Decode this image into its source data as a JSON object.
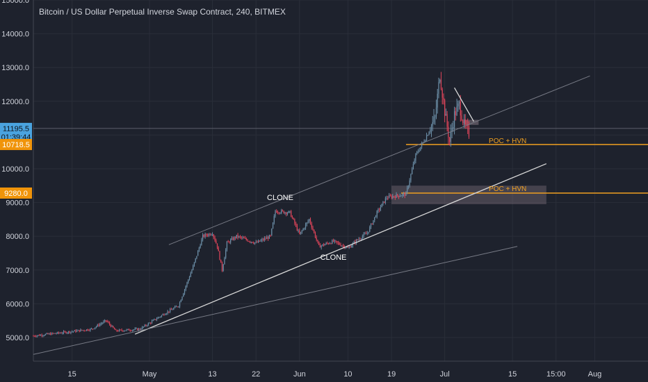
{
  "header": {
    "title": "Bitcoin / US Dollar Perpetual Inverse Swap Contract, 240, BITMEX"
  },
  "colors": {
    "background": "#1e222d",
    "grid": "#2a2e39",
    "axis_text": "#d1d4dc",
    "up_candle": "#6c8fa8",
    "down_candle": "#e0455a",
    "trendline_white": "#d9d9d9",
    "trendline_grey": "#787b86",
    "poc_line": "#f0a020",
    "zone_fill": "#8e7e8a",
    "price_badge_blue": "#4aa3df",
    "price_badge_orange": "#f0940a"
  },
  "price_badges": [
    {
      "label": "11195.5",
      "value": 11195.5,
      "color": "blue"
    },
    {
      "label": "01:39:44",
      "value": 10950,
      "color": "blue"
    },
    {
      "label": "10718.5",
      "value": 10718.5,
      "color": "orange"
    },
    {
      "label": "9280.0",
      "value": 9280,
      "color": "orange"
    }
  ],
  "annotations": {
    "clone_upper": "CLONE",
    "clone_lower": "CLONE",
    "poc_upper": "POC + HVN",
    "poc_lower": "POC + HVN"
  },
  "chart_data": {
    "type": "candlestick",
    "title": "Bitcoin / US Dollar Perpetual Inverse Swap Contract, 240, BITMEX",
    "y_axis": {
      "min": 4300,
      "max": 15000,
      "ticks": [
        5000,
        6000,
        7000,
        8000,
        9000,
        10000,
        11000,
        12000,
        13000,
        14000,
        15000
      ],
      "tick_labels": [
        "5000.0",
        "6000.0",
        "7000.0",
        "8000.0",
        "9000.0",
        "10000.0",
        "11000.0",
        "12000.0",
        "13000.0",
        "14000.0",
        "15000.0"
      ]
    },
    "x_axis": {
      "unit": "days from 2019-04-07",
      "min": 0,
      "max": 127,
      "tick_labels": [
        "15",
        "May",
        "13",
        "22",
        "Jun",
        "10",
        "19",
        "Jul",
        "15",
        "15:00",
        "Aug"
      ],
      "tick_values": [
        8,
        24,
        37,
        46,
        55,
        65,
        74,
        85,
        99,
        108,
        116
      ]
    },
    "ohlc_control_points": [
      {
        "day": 0,
        "close": 5050
      },
      {
        "day": 8,
        "close": 5180
      },
      {
        "day": 12,
        "close": 5250
      },
      {
        "day": 15,
        "close": 5500
      },
      {
        "day": 17,
        "close": 5200
      },
      {
        "day": 22,
        "close": 5250
      },
      {
        "day": 27,
        "close": 5700
      },
      {
        "day": 30,
        "close": 5950
      },
      {
        "day": 33,
        "close": 7100
      },
      {
        "day": 35,
        "close": 8000
      },
      {
        "day": 37,
        "close": 8100
      },
      {
        "day": 38,
        "close": 7700
      },
      {
        "day": 39,
        "close": 7000
      },
      {
        "day": 40,
        "close": 7800
      },
      {
        "day": 42,
        "close": 8000
      },
      {
        "day": 46,
        "close": 7800
      },
      {
        "day": 49,
        "close": 8000
      },
      {
        "day": 50,
        "close": 8750
      },
      {
        "day": 53,
        "close": 8700
      },
      {
        "day": 55,
        "close": 8050
      },
      {
        "day": 57,
        "close": 8500
      },
      {
        "day": 59,
        "close": 7700
      },
      {
        "day": 62,
        "close": 7850
      },
      {
        "day": 65,
        "close": 7650
      },
      {
        "day": 67,
        "close": 7900
      },
      {
        "day": 69,
        "close": 8100
      },
      {
        "day": 71,
        "close": 8700
      },
      {
        "day": 73,
        "close": 9150
      },
      {
        "day": 75,
        "close": 9200
      },
      {
        "day": 77,
        "close": 9250
      },
      {
        "day": 79,
        "close": 10400
      },
      {
        "day": 81,
        "close": 10900
      },
      {
        "day": 83,
        "close": 11500
      },
      {
        "day": 84,
        "close": 12800
      },
      {
        "day": 85,
        "close": 11700
      },
      {
        "day": 86,
        "close": 10800
      },
      {
        "day": 87,
        "close": 11600
      },
      {
        "day": 88,
        "close": 11900
      },
      {
        "day": 89,
        "close": 11300
      },
      {
        "day": 90,
        "close": 11050
      }
    ],
    "levels": {
      "poc_upper": 10718.5,
      "poc_lower": 9280,
      "zone_lower": {
        "from": 8950,
        "to": 9500,
        "day_start": 74,
        "day_end": 106
      },
      "zone_upper": {
        "from": 11300,
        "to": 11450,
        "day_start": 89,
        "day_end": 92
      },
      "current_price": 11195.5
    },
    "trendlines": [
      {
        "name": "rising-support",
        "from": {
          "day": 21,
          "price": 5100
        },
        "to": {
          "day": 106,
          "price": 10150
        }
      },
      {
        "name": "upper-channel",
        "from": {
          "day": 28,
          "price": 7750
        },
        "to": {
          "day": 115,
          "price": 12750
        }
      },
      {
        "name": "lower-channel",
        "from": {
          "day": 0,
          "price": 4500
        },
        "to": {
          "day": 100,
          "price": 7700
        }
      },
      {
        "name": "wedge-top",
        "from": {
          "day": 87,
          "price": 12400
        },
        "to": {
          "day": 91,
          "price": 11400
        }
      }
    ]
  }
}
